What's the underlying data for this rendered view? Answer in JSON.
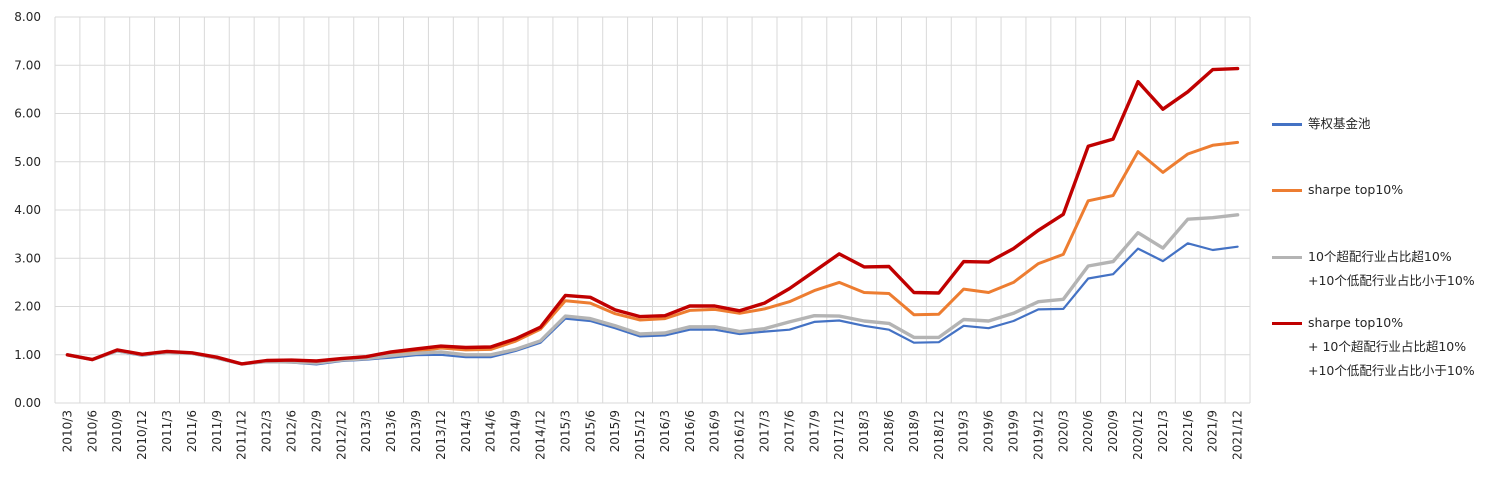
{
  "chart_data": {
    "type": "line",
    "title": "",
    "xlabel": "",
    "ylabel": "",
    "ylim": [
      0,
      8
    ],
    "yticks": [
      "0.00",
      "1.00",
      "2.00",
      "3.00",
      "4.00",
      "5.00",
      "6.00",
      "7.00",
      "8.00"
    ],
    "grid": true,
    "legend_position": "right",
    "categories": [
      "2010/3",
      "2010/6",
      "2010/9",
      "2010/12",
      "2011/3",
      "2011/6",
      "2011/9",
      "2011/12",
      "2012/3",
      "2012/6",
      "2012/9",
      "2012/12",
      "2013/3",
      "2013/6",
      "2013/9",
      "2013/12",
      "2014/3",
      "2014/6",
      "2014/9",
      "2014/12",
      "2015/3",
      "2015/6",
      "2015/9",
      "2015/12",
      "2016/3",
      "2016/6",
      "2016/9",
      "2016/12",
      "2017/3",
      "2017/6",
      "2017/9",
      "2017/12",
      "2018/3",
      "2018/6",
      "2018/9",
      "2018/12",
      "2019/3",
      "2019/6",
      "2019/9",
      "2019/12",
      "2020/3",
      "2020/6",
      "2020/9",
      "2020/12",
      "2021/3",
      "2021/6",
      "2021/9",
      "2021/12"
    ],
    "series": [
      {
        "name": "等权基金池",
        "color": "#4472C4",
        "values": [
          1.0,
          0.9,
          1.07,
          0.98,
          1.04,
          1.02,
          0.92,
          0.8,
          0.85,
          0.84,
          0.8,
          0.87,
          0.9,
          0.94,
          0.99,
          1.0,
          0.95,
          0.95,
          1.08,
          1.25,
          1.75,
          1.7,
          1.55,
          1.38,
          1.4,
          1.52,
          1.52,
          1.43,
          1.48,
          1.52,
          1.68,
          1.71,
          1.6,
          1.52,
          1.25,
          1.26,
          1.6,
          1.55,
          1.7,
          1.94,
          1.95,
          2.58,
          2.67,
          3.2,
          2.94,
          3.31,
          3.17,
          3.24
        ]
      },
      {
        "name": "sharpe top10%",
        "color": "#ED7D31",
        "values": [
          1.0,
          0.9,
          1.09,
          1.0,
          1.06,
          1.03,
          0.94,
          0.81,
          0.87,
          0.87,
          0.84,
          0.89,
          0.92,
          1.0,
          1.07,
          1.14,
          1.1,
          1.11,
          1.28,
          1.53,
          2.12,
          2.07,
          1.85,
          1.72,
          1.75,
          1.92,
          1.94,
          1.86,
          1.95,
          2.1,
          2.33,
          2.5,
          2.29,
          2.27,
          1.83,
          1.84,
          2.36,
          2.29,
          2.5,
          2.89,
          3.08,
          4.19,
          4.3,
          5.21,
          4.78,
          5.16,
          5.34,
          5.4
        ]
      },
      {
        "name_lines": [
          "10个超配行业占比超10%",
          "+10个低配行业占比小于10%"
        ],
        "color": "#B4B4B4",
        "values": [
          1.0,
          0.9,
          1.08,
          1.0,
          1.05,
          1.03,
          0.93,
          0.81,
          0.86,
          0.85,
          0.83,
          0.89,
          0.92,
          0.98,
          1.03,
          1.06,
          1.0,
          1.0,
          1.11,
          1.29,
          1.8,
          1.75,
          1.6,
          1.43,
          1.45,
          1.58,
          1.58,
          1.48,
          1.54,
          1.68,
          1.81,
          1.8,
          1.7,
          1.65,
          1.36,
          1.36,
          1.73,
          1.7,
          1.86,
          2.1,
          2.15,
          2.84,
          2.93,
          3.53,
          3.21,
          3.81,
          3.84,
          3.9
        ]
      },
      {
        "name_lines": [
          "sharpe top10%",
          "+ 10个超配行业占比超10%",
          "+10个低配行业占比小于10%"
        ],
        "color": "#C00000",
        "values": [
          1.0,
          0.9,
          1.1,
          1.01,
          1.07,
          1.04,
          0.95,
          0.81,
          0.88,
          0.89,
          0.87,
          0.92,
          0.96,
          1.06,
          1.12,
          1.18,
          1.15,
          1.16,
          1.33,
          1.57,
          2.23,
          2.19,
          1.93,
          1.79,
          1.81,
          2.01,
          2.01,
          1.91,
          2.07,
          2.37,
          2.73,
          3.09,
          2.82,
          2.83,
          2.29,
          2.28,
          2.93,
          2.92,
          3.2,
          3.58,
          3.91,
          5.32,
          5.47,
          6.66,
          6.09,
          6.45,
          6.91,
          6.93
        ]
      }
    ]
  }
}
